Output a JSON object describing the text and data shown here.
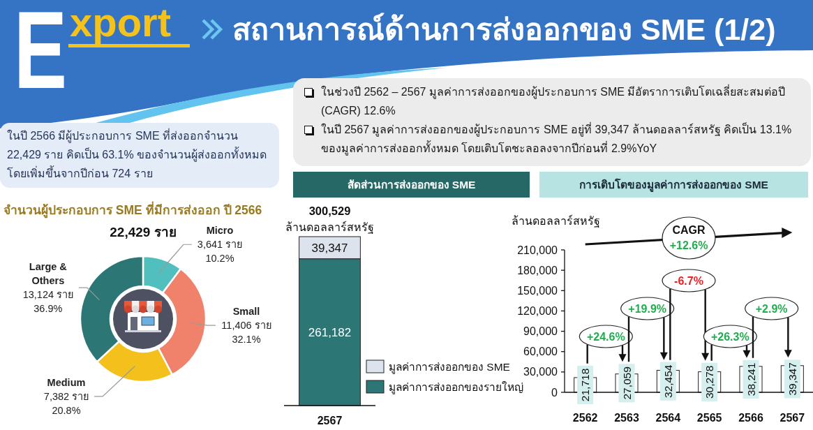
{
  "chart_data": [
    {
      "type": "other",
      "title": "Export",
      "subtitle": "สถานการณ์ด้านการส่งออกของ SME (1/2)",
      "annotations": [
        "ในปี 2566 มีผู้ประกอบการ SME ที่ส่งออกจำนวน 22,429 ราย คิดเป็น 63.1% ของจำนวนผู้ส่งออกทั้งหมด โดยเพิ่มขึ้นจากปีก่อน 724 ราย",
        "ในช่วงปี 2562 – 2567 มูลค่าการส่งออกของผู้ประกอบการ SME มีอัตราการเติบโตเฉลี่ยสะสมต่อปี (CAGR) 12.6%",
        "ในปี 2567 มูลค่าการส่งออกของผู้ประกอบการ SME อยู่ที่ 39,347 ล้านดอลลาร์สหรัฐ คิดเป็น 13.1% ของมูลค่าการส่งออกทั้งหมด โดยเติบโตชะลอลงจากปีก่อนที่ 2.9%YoY"
      ]
    },
    {
      "type": "donut",
      "title": "จำนวนผู้ประกอบการ SME ที่มีการส่งออก ปี 2566",
      "subtitle": "22,429 ราย",
      "categories": [
        "Micro",
        "Small",
        "Medium",
        "Large & Others"
      ],
      "values": [
        3641,
        11406,
        7382,
        13124
      ],
      "colors": [
        "#52bfbf",
        "#f0826c",
        "#f4c01c",
        "#2c7775"
      ],
      "value_labels": [
        "3,641 ราย 10.2%",
        "11,406 ราย 32.1%",
        "7,382 ราย 20.8%",
        "13,124 ราย 36.9%"
      ]
    },
    {
      "type": "bar",
      "title": "สัดส่วนการส่งออกของ SME",
      "ylabel": "ล้านดอลลาร์สหรัฐ",
      "categories": [
        "2567"
      ],
      "stacked": true,
      "series": [
        {
          "name": "มูลค่าการส่งออกของรายใหญ่",
          "color": "#2c7775",
          "values": [
            261182
          ],
          "value_labels": [
            "261,182"
          ]
        },
        {
          "name": "มูลค่าการส่งออกของ SME",
          "color": "#dde3ed",
          "values": [
            39347
          ],
          "value_labels": [
            "39,347"
          ]
        }
      ],
      "totals": [
        "300,529"
      ],
      "legend": "right"
    },
    {
      "type": "bar",
      "title": "การเติบโตของมูลค่าการส่งออกของ SME",
      "ylabel": "ล้านดอลลาร์สหรัฐ",
      "categories": [
        "2562",
        "2563",
        "2564",
        "2565",
        "2566",
        "2567"
      ],
      "values": [
        21718,
        27059,
        32454,
        30278,
        38241,
        39347
      ],
      "value_labels": [
        "21,718",
        "27,059",
        "32,454",
        "30,278",
        "38,241",
        "39,347"
      ],
      "color": "#ffffff",
      "ylim": [
        0,
        210000
      ],
      "yticks": [
        0,
        {
          "value": 30000,
          "label": "30,000"
        },
        {
          "value": 60000,
          "label": "60,000"
        },
        {
          "value": 90000,
          "label": "90,000"
        },
        {
          "value": 120000,
          "label": "120,000"
        },
        {
          "value": 150000,
          "label": "150,000"
        },
        {
          "value": 180000,
          "label": "180,000"
        },
        {
          "value": 210000,
          "label": "210,000"
        }
      ],
      "annotations": [
        "+24.6%",
        "+19.9%",
        "-6.7%",
        "+26.3%",
        "+2.9%",
        "CAGR +12.6%"
      ]
    }
  ]
}
